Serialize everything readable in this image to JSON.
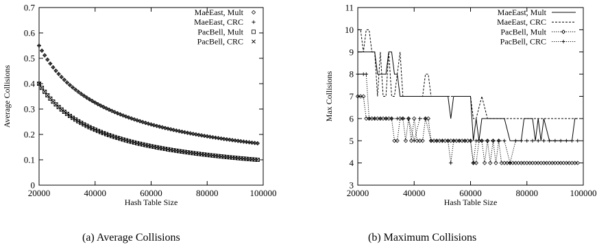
{
  "captions": [
    "(a) Average Collisions",
    "(b) Maximum Collisions"
  ],
  "chart_data": [
    {
      "type": "scatter",
      "title": "",
      "xlabel": "Hash Table Size",
      "ylabel": "Average Collisions",
      "xlim": [
        20000,
        100000
      ],
      "ylim": [
        0,
        0.7
      ],
      "xticks": [
        "20000",
        "40000",
        "60000",
        "80000",
        "100000"
      ],
      "yticks": [
        "0",
        "0.1",
        "0.2",
        "0.3",
        "0.4",
        "0.5",
        "0.6",
        "0.7"
      ],
      "legend_position": "top-right",
      "x_range": [
        20000,
        98000
      ],
      "series": [
        {
          "name": "MaeEast, Mult",
          "marker": "diamond",
          "start": 0.55,
          "end": 0.165
        },
        {
          "name": "MaeEast, CRC",
          "marker": "plus",
          "start": 0.55,
          "end": 0.165
        },
        {
          "name": "PacBell, Mult",
          "marker": "square",
          "start": 0.4,
          "end": 0.1
        },
        {
          "name": "PacBell, CRC",
          "marker": "cross",
          "start": 0.4,
          "end": 0.1
        }
      ]
    },
    {
      "type": "line",
      "title": "",
      "xlabel": "Hash Table Size",
      "ylabel": "Max Collisions",
      "xlim": [
        20000,
        100000
      ],
      "ylim": [
        3,
        11
      ],
      "xticks": [
        "20000",
        "40000",
        "60000",
        "80000",
        "100000"
      ],
      "yticks": [
        "3",
        "4",
        "5",
        "6",
        "7",
        "8",
        "9",
        "10",
        "11"
      ],
      "legend_position": "top-right",
      "series": [
        {
          "name": "MaeEast, Mult",
          "style": "solid",
          "marker": "none",
          "x": [
            20000,
            22000,
            24000,
            26000,
            27000,
            28000,
            30000,
            31000,
            32000,
            33000,
            34000,
            35000,
            36000,
            38000,
            40000,
            44000,
            48000,
            50000,
            52000,
            53000,
            54000,
            56000,
            58000,
            60000,
            61000,
            62000,
            63000,
            64000,
            66000,
            68000,
            70000,
            72000,
            74000,
            76000,
            78000,
            79000,
            80000,
            82000,
            83000,
            84000,
            85000,
            86000,
            88000,
            90000,
            92000,
            94000,
            96000,
            97000,
            98000
          ],
          "y": [
            9,
            9,
            9,
            9,
            8,
            8,
            8,
            9,
            9,
            8,
            8,
            7,
            7,
            7,
            7,
            7,
            7,
            7,
            7,
            6,
            7,
            7,
            7,
            7,
            5,
            6,
            5,
            6,
            6,
            6,
            6,
            6,
            5,
            5,
            5,
            6,
            6,
            6,
            5,
            6,
            5,
            6,
            5,
            5,
            5,
            5,
            5,
            6,
            6
          ]
        },
        {
          "name": "MaeEast, CRC",
          "style": "dashed",
          "marker": "none",
          "x": [
            20000,
            21000,
            22000,
            23000,
            24000,
            25000,
            26000,
            27000,
            28000,
            29000,
            30000,
            31000,
            32000,
            33000,
            34000,
            35000,
            36000,
            37000,
            38000,
            40000,
            42000,
            43000,
            44000,
            45000,
            46000,
            48000,
            50000,
            52000,
            54000,
            56000,
            58000,
            60000,
            61000,
            62000,
            64000,
            66000,
            68000,
            70000,
            72000,
            74000,
            76000,
            78000,
            80000,
            84000,
            88000,
            92000,
            96000,
            98000
          ],
          "y": [
            10,
            10,
            9,
            10,
            10,
            9,
            9,
            7,
            9,
            7,
            7,
            9,
            7,
            7,
            8,
            9,
            7,
            7,
            7,
            7,
            7,
            7,
            8,
            8,
            7,
            7,
            7,
            7,
            7,
            7,
            7,
            7,
            6,
            6,
            7,
            6,
            6,
            6,
            6,
            6,
            6,
            6,
            6,
            6,
            6,
            6,
            6,
            6
          ]
        },
        {
          "name": "PacBell, Mult",
          "style": "dotted",
          "marker": "diamond",
          "x": [
            20000,
            21000,
            22000,
            23000,
            24000,
            25000,
            26000,
            27000,
            28000,
            29000,
            30000,
            31000,
            32000,
            33000,
            34000,
            35000,
            36000,
            37000,
            38000,
            39000,
            40000,
            41000,
            42000,
            43000,
            44000,
            45000,
            46000,
            47000,
            48000,
            49000,
            50000,
            51000,
            52000,
            53000,
            54000,
            55000,
            56000,
            57000,
            58000,
            59000,
            60000,
            61000,
            62000,
            63000,
            64000,
            65000,
            66000,
            67000,
            68000,
            69000,
            70000,
            71000,
            72000,
            73000,
            74000,
            75000,
            76000,
            77000,
            78000,
            79000,
            80000,
            81000,
            82000,
            83000,
            84000,
            85000,
            86000,
            87000,
            88000,
            89000,
            90000,
            91000,
            92000,
            93000,
            94000,
            95000,
            96000,
            97000,
            98000
          ],
          "y": [
            7,
            7,
            7,
            6,
            6,
            6,
            6,
            6,
            6,
            6,
            6,
            6,
            6,
            5,
            5,
            6,
            6,
            5,
            6,
            5,
            6,
            5,
            5,
            5,
            6,
            6,
            5,
            5,
            5,
            5,
            5,
            5,
            5,
            5,
            5,
            5,
            5,
            5,
            5,
            5,
            5,
            4,
            4,
            5,
            5,
            4,
            5,
            4,
            5,
            4,
            5,
            4,
            4,
            4,
            4,
            4,
            4,
            4,
            4,
            4,
            4,
            4,
            4,
            4,
            4,
            4,
            4,
            4,
            4,
            4,
            4,
            4,
            4,
            4,
            4,
            4,
            4,
            4,
            4
          ]
        },
        {
          "name": "PacBell, CRC",
          "style": "dotted",
          "marker": "plus",
          "x": [
            20000,
            22000,
            23000,
            24000,
            26000,
            28000,
            30000,
            32000,
            34000,
            36000,
            38000,
            40000,
            42000,
            44000,
            46000,
            48000,
            50000,
            52000,
            53000,
            54000,
            56000,
            58000,
            60000,
            61000,
            62000,
            64000,
            66000,
            68000,
            70000,
            72000,
            74000,
            76000,
            78000,
            80000,
            82000,
            84000,
            86000,
            88000,
            90000,
            92000,
            94000,
            96000,
            98000
          ],
          "y": [
            8,
            8,
            8,
            6,
            6,
            6,
            6,
            6,
            6,
            6,
            6,
            5,
            6,
            6,
            5,
            5,
            5,
            5,
            4,
            5,
            5,
            5,
            5,
            4,
            5,
            5,
            5,
            5,
            5,
            5,
            4,
            5,
            5,
            5,
            5,
            5,
            5,
            5,
            5,
            5,
            5,
            5,
            5
          ]
        }
      ]
    }
  ]
}
